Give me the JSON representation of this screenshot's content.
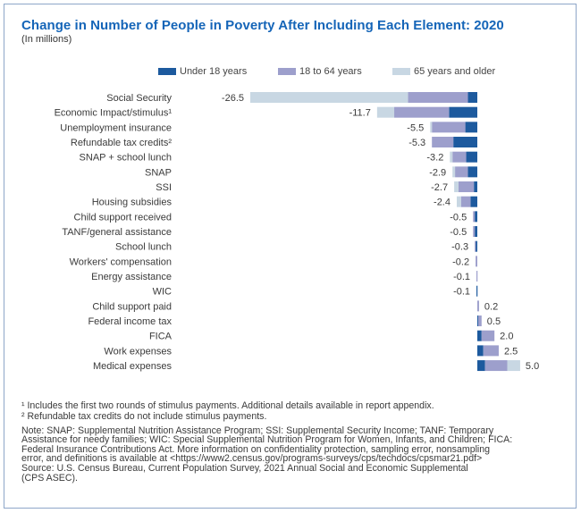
{
  "title": "Change in Number of People in Poverty After Including Each Element: 2020",
  "subtitle": "(In millions)",
  "legend": [
    {
      "label": "Under 18 years",
      "color": "#1d5a9e"
    },
    {
      "label": "18 to 64 years",
      "color": "#9d9fcc"
    },
    {
      "label": "65 years and older",
      "color": "#c8d7e3"
    }
  ],
  "footnotes": {
    "fn1": "¹ Includes the first two rounds of stimulus payments. Additional details available in report appendix.",
    "fn2": "² Refundable tax credits do not include stimulus payments.",
    "note_lines": [
      "Note: SNAP: Supplemental Nutrition Assistance Program; SSI: Supplemental Security Income; TANF: Temporary",
      "Assistance for needy families; WIC: Special Supplemental Nutrition Program for Women, Infants, and Children; FICA:",
      "Federal Insurance Contributions Act. More information on confidentiality protection, sampling error, nonsampling",
      "error, and definitions is available at <https://www2.census.gov/programs-surveys/cps/techdocs/cpsmar21.pdf>"
    ],
    "source_lines": [
      "Source: U.S. Census Bureau, Current Population Survey, 2021 Annual Social and Economic Supplemental",
      "(CPS ASEC)."
    ]
  },
  "chart_data": {
    "type": "bar",
    "orientation": "horizontal",
    "stacked": true,
    "title": "Change in Number of People in Poverty After Including Each Element: 2020",
    "subtitle": "(In millions)",
    "xlabel": "",
    "ylabel": "",
    "unit": "millions",
    "xlim": [
      -26.5,
      5.0
    ],
    "grid": false,
    "legend_position": "top",
    "categories": [
      "Social Security",
      "Economic Impact/stimulus¹",
      "Unemployment insurance",
      "Refundable tax credits²",
      "SNAP + school lunch",
      "SNAP",
      "SSI",
      "Housing subsidies",
      "Child support received",
      "TANF/general assistance",
      "School lunch",
      "Workers' compensation",
      "Energy assistance",
      "WIC",
      "Child support paid",
      "Federal income tax",
      "FICA",
      "Work expenses",
      "Medical expenses"
    ],
    "totals": [
      -26.5,
      -11.7,
      -5.5,
      -5.3,
      -3.2,
      -2.9,
      -2.7,
      -2.4,
      -0.5,
      -0.5,
      -0.3,
      -0.2,
      -0.1,
      -0.1,
      0.2,
      0.5,
      2.0,
      2.5,
      5.0
    ],
    "total_labels": [
      "-26.5",
      "-11.7",
      "-5.5",
      "-5.3",
      "-3.2",
      "-2.9",
      "-2.7",
      "-2.4",
      "-0.5",
      "-0.5",
      "-0.3",
      "-0.2",
      "-0.1",
      "-0.1",
      "0.2",
      "0.5",
      "2.0",
      "2.5",
      "5.0"
    ],
    "series": [
      {
        "name": "Under 18 years",
        "color": "#1d5a9e",
        "values": [
          -1.1,
          -3.3,
          -1.4,
          -2.8,
          -1.3,
          -1.1,
          -0.4,
          -0.8,
          -0.3,
          -0.3,
          -0.2,
          0.0,
          0.0,
          -0.1,
          0.0,
          0.1,
          0.5,
          0.7,
          0.9
        ]
      },
      {
        "name": "18 to 64 years",
        "color": "#9d9fcc",
        "values": [
          -7.0,
          -6.4,
          -3.9,
          -2.5,
          -1.6,
          -1.5,
          -1.8,
          -1.1,
          -0.2,
          -0.2,
          -0.1,
          -0.2,
          -0.1,
          0.0,
          0.2,
          0.4,
          1.5,
          1.8,
          2.6
        ]
      },
      {
        "name": "65 years and older",
        "color": "#c8d7e3",
        "values": [
          -18.4,
          -2.0,
          -0.2,
          0.0,
          -0.3,
          -0.3,
          -0.5,
          -0.5,
          0.0,
          0.0,
          0.0,
          0.0,
          0.0,
          0.0,
          0.0,
          0.0,
          0.0,
          0.0,
          1.5
        ]
      }
    ]
  }
}
